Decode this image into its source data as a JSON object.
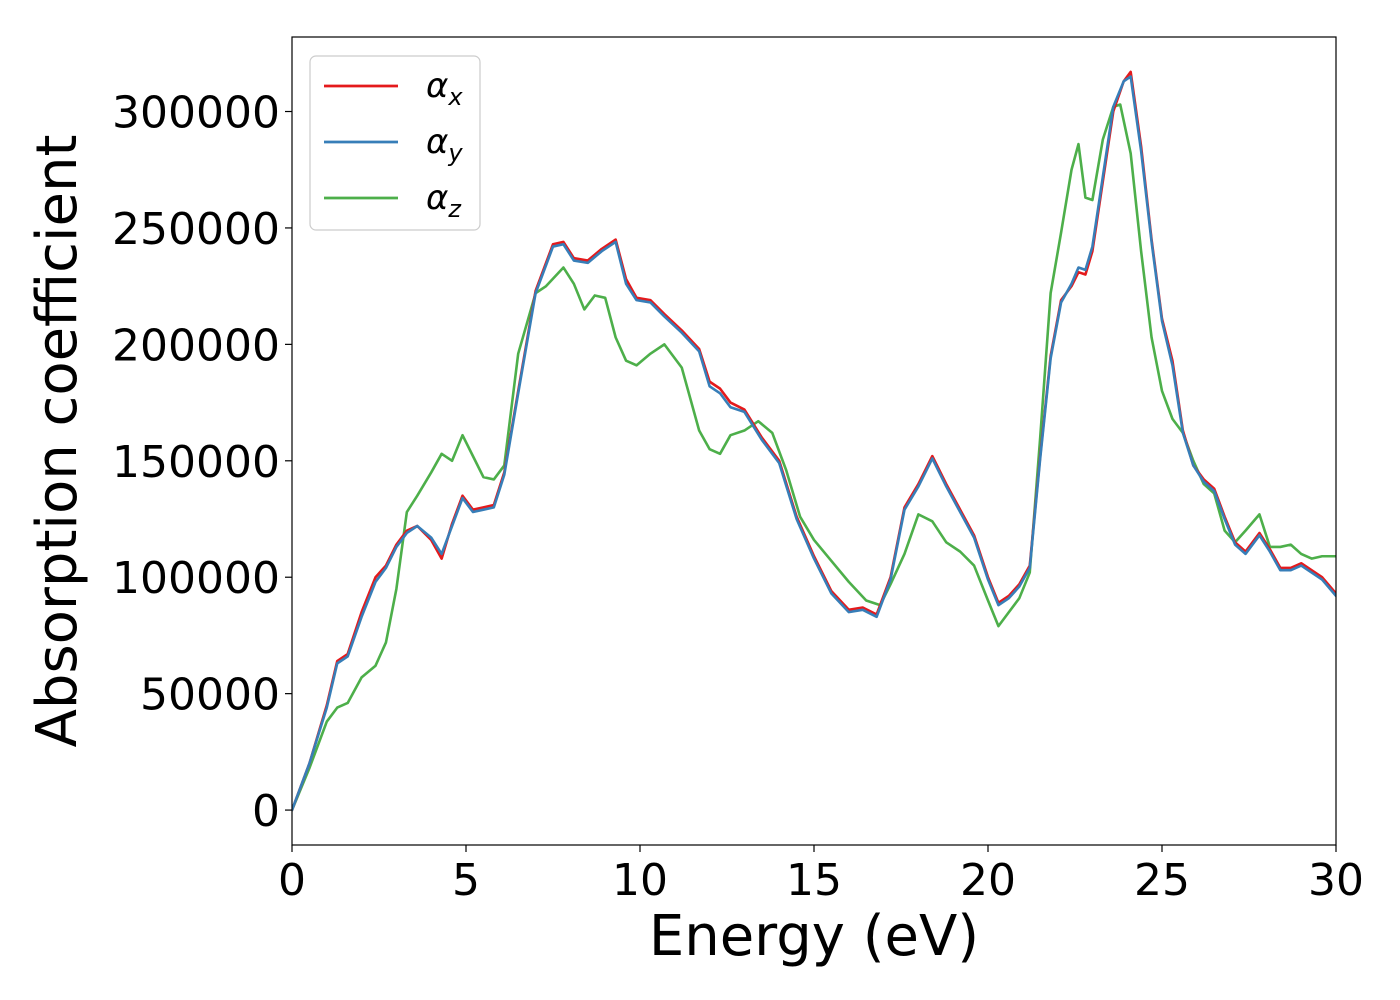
{
  "chart_data": {
    "type": "line",
    "title": "",
    "xlabel": "Energy (eV)",
    "ylabel": "Absorption coefficient",
    "xlim": [
      0,
      30
    ],
    "ylim": [
      -15000,
      332000
    ],
    "xticks": [
      0,
      5,
      10,
      15,
      20,
      25,
      30
    ],
    "yticks": [
      0,
      50000,
      100000,
      150000,
      200000,
      250000,
      300000
    ],
    "grid": false,
    "legend_position": "top-left",
    "colors": {
      "alpha_x": "#e41a1c",
      "alpha_y": "#377eb8",
      "alpha_z": "#4daf4a"
    },
    "series": [
      {
        "name": "α",
        "subscript": "x",
        "x": [
          0,
          0.5,
          1,
          1.3,
          1.6,
          2,
          2.4,
          2.7,
          3,
          3.3,
          3.6,
          4,
          4.3,
          4.6,
          4.9,
          5.2,
          5.5,
          5.8,
          6.1,
          6.5,
          7,
          7.5,
          7.8,
          8.1,
          8.5,
          8.9,
          9.3,
          9.6,
          9.9,
          10.3,
          10.7,
          11.2,
          11.7,
          12,
          12.3,
          12.6,
          13,
          13.5,
          14,
          14.5,
          15,
          15.5,
          16,
          16.4,
          16.8,
          17.2,
          17.6,
          18,
          18.4,
          18.8,
          19.2,
          19.6,
          20,
          20.3,
          20.6,
          20.9,
          21.2,
          21.5,
          21.8,
          22.1,
          22.4,
          22.6,
          22.8,
          23,
          23.3,
          23.6,
          23.9,
          24.1,
          24.4,
          24.7,
          25,
          25.3,
          25.6,
          25.9,
          26.2,
          26.5,
          26.8,
          27.1,
          27.4,
          27.8,
          28.1,
          28.4,
          28.7,
          29,
          29.3,
          29.6,
          30
        ],
        "values": [
          0,
          20000,
          45000,
          64000,
          67000,
          85000,
          100000,
          105000,
          114000,
          120000,
          122000,
          116000,
          108000,
          123000,
          135000,
          129000,
          130000,
          131000,
          145000,
          180000,
          223000,
          243000,
          244000,
          237000,
          236000,
          241000,
          245000,
          228000,
          220000,
          219000,
          213000,
          206000,
          198000,
          184000,
          181000,
          175000,
          172000,
          160000,
          150000,
          126000,
          109000,
          94000,
          86000,
          87000,
          84000,
          100000,
          130000,
          140000,
          152000,
          140000,
          129000,
          118000,
          100000,
          89000,
          92000,
          97000,
          105000,
          152000,
          195000,
          219000,
          225000,
          231000,
          230000,
          240000,
          270000,
          300000,
          313000,
          317000,
          285000,
          245000,
          211000,
          193000,
          163000,
          148000,
          142000,
          138000,
          126000,
          115000,
          111000,
          119000,
          112000,
          104000,
          104000,
          106000,
          103000,
          100000,
          93000
        ]
      },
      {
        "name": "α",
        "subscript": "y",
        "x": [
          0,
          0.5,
          1,
          1.3,
          1.6,
          2,
          2.4,
          2.7,
          3,
          3.3,
          3.6,
          4,
          4.3,
          4.6,
          4.9,
          5.2,
          5.5,
          5.8,
          6.1,
          6.5,
          7,
          7.5,
          7.8,
          8.1,
          8.5,
          8.9,
          9.3,
          9.6,
          9.9,
          10.3,
          10.7,
          11.2,
          11.7,
          12,
          12.3,
          12.6,
          13,
          13.5,
          14,
          14.5,
          15,
          15.5,
          16,
          16.4,
          16.8,
          17.2,
          17.6,
          18,
          18.4,
          18.8,
          19.2,
          19.6,
          20,
          20.3,
          20.6,
          20.9,
          21.2,
          21.5,
          21.8,
          22.1,
          22.4,
          22.6,
          22.8,
          23,
          23.3,
          23.6,
          23.9,
          24.1,
          24.4,
          24.7,
          25,
          25.3,
          25.6,
          25.9,
          26.2,
          26.5,
          26.8,
          27.1,
          27.4,
          27.8,
          28.1,
          28.4,
          28.7,
          29,
          29.3,
          29.6,
          30
        ],
        "values": [
          0,
          20000,
          44000,
          63000,
          66000,
          83000,
          98000,
          104000,
          113000,
          119000,
          122000,
          117000,
          110000,
          122000,
          134000,
          128000,
          129000,
          130000,
          144000,
          179000,
          222000,
          242000,
          243000,
          236000,
          235000,
          240000,
          244000,
          226000,
          219000,
          218000,
          212000,
          205000,
          197000,
          182000,
          179000,
          173000,
          171000,
          159000,
          149000,
          125000,
          108000,
          93000,
          85000,
          86000,
          83000,
          99000,
          129000,
          139000,
          151000,
          139000,
          128000,
          117000,
          99000,
          88000,
          91000,
          96000,
          104000,
          151000,
          194000,
          218000,
          226000,
          233000,
          232000,
          242000,
          272000,
          302000,
          313000,
          315000,
          283000,
          244000,
          210000,
          191000,
          162000,
          148000,
          141000,
          137000,
          125000,
          114000,
          110000,
          118000,
          111000,
          103000,
          103000,
          105000,
          102000,
          99000,
          92000
        ]
      },
      {
        "name": "α",
        "subscript": "z",
        "x": [
          0,
          0.5,
          1,
          1.3,
          1.6,
          2,
          2.4,
          2.7,
          3,
          3.3,
          3.6,
          4,
          4.3,
          4.6,
          4.9,
          5.2,
          5.5,
          5.8,
          6.1,
          6.5,
          7,
          7.3,
          7.8,
          8.1,
          8.4,
          8.7,
          9,
          9.3,
          9.6,
          9.9,
          10.3,
          10.7,
          11.2,
          11.7,
          12,
          12.3,
          12.6,
          13,
          13.4,
          13.8,
          14.2,
          14.6,
          15,
          15.5,
          16,
          16.5,
          16.9,
          17.2,
          17.6,
          18,
          18.4,
          18.8,
          19.2,
          19.6,
          20,
          20.3,
          20.6,
          20.9,
          21.2,
          21.5,
          21.8,
          22.1,
          22.4,
          22.6,
          22.8,
          23,
          23.3,
          23.6,
          23.8,
          24.1,
          24.4,
          24.7,
          25,
          25.3,
          25.6,
          25.9,
          26.2,
          26.5,
          26.8,
          27.1,
          27.4,
          27.8,
          28.1,
          28.4,
          28.7,
          29,
          29.3,
          29.6,
          30
        ],
        "values": [
          0,
          18000,
          38000,
          44000,
          46000,
          57000,
          62000,
          72000,
          95000,
          128000,
          135000,
          145000,
          153000,
          150000,
          161000,
          152000,
          143000,
          142000,
          148000,
          196000,
          222000,
          225000,
          233000,
          226000,
          215000,
          221000,
          220000,
          203000,
          193000,
          191000,
          196000,
          200000,
          190000,
          163000,
          155000,
          153000,
          161000,
          163000,
          167000,
          162000,
          146000,
          126000,
          116000,
          107000,
          98000,
          90000,
          88000,
          97000,
          110000,
          127000,
          124000,
          115000,
          111000,
          105000,
          90000,
          79000,
          85000,
          91000,
          102000,
          160000,
          222000,
          248000,
          275000,
          286000,
          263000,
          262000,
          288000,
          302000,
          303000,
          282000,
          240000,
          203000,
          180000,
          168000,
          162000,
          150000,
          140000,
          136000,
          120000,
          115000,
          120000,
          127000,
          113000,
          113000,
          114000,
          110000,
          108000,
          109000,
          109000
        ]
      }
    ]
  }
}
